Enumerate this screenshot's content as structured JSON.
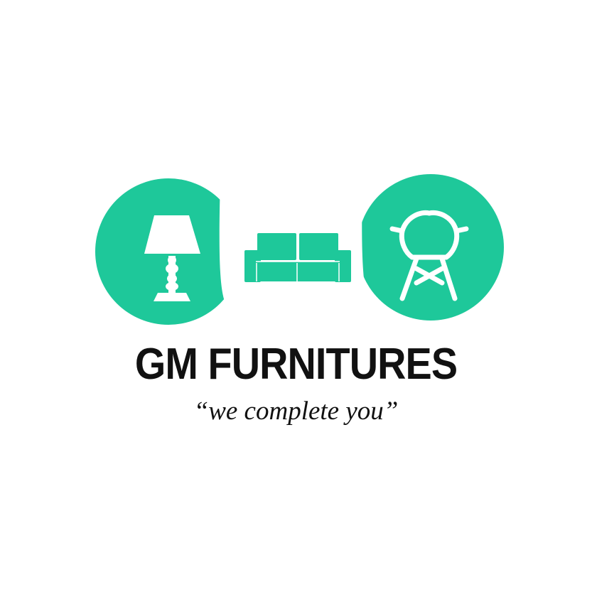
{
  "brand": {
    "name": "GM FURNITURES",
    "tagline": "“we complete you”"
  },
  "colors": {
    "accent": "#1ec89a",
    "text": "#111111",
    "background": "#ffffff"
  },
  "icons": [
    "lamp-icon",
    "sofa-icon",
    "chair-icon"
  ]
}
